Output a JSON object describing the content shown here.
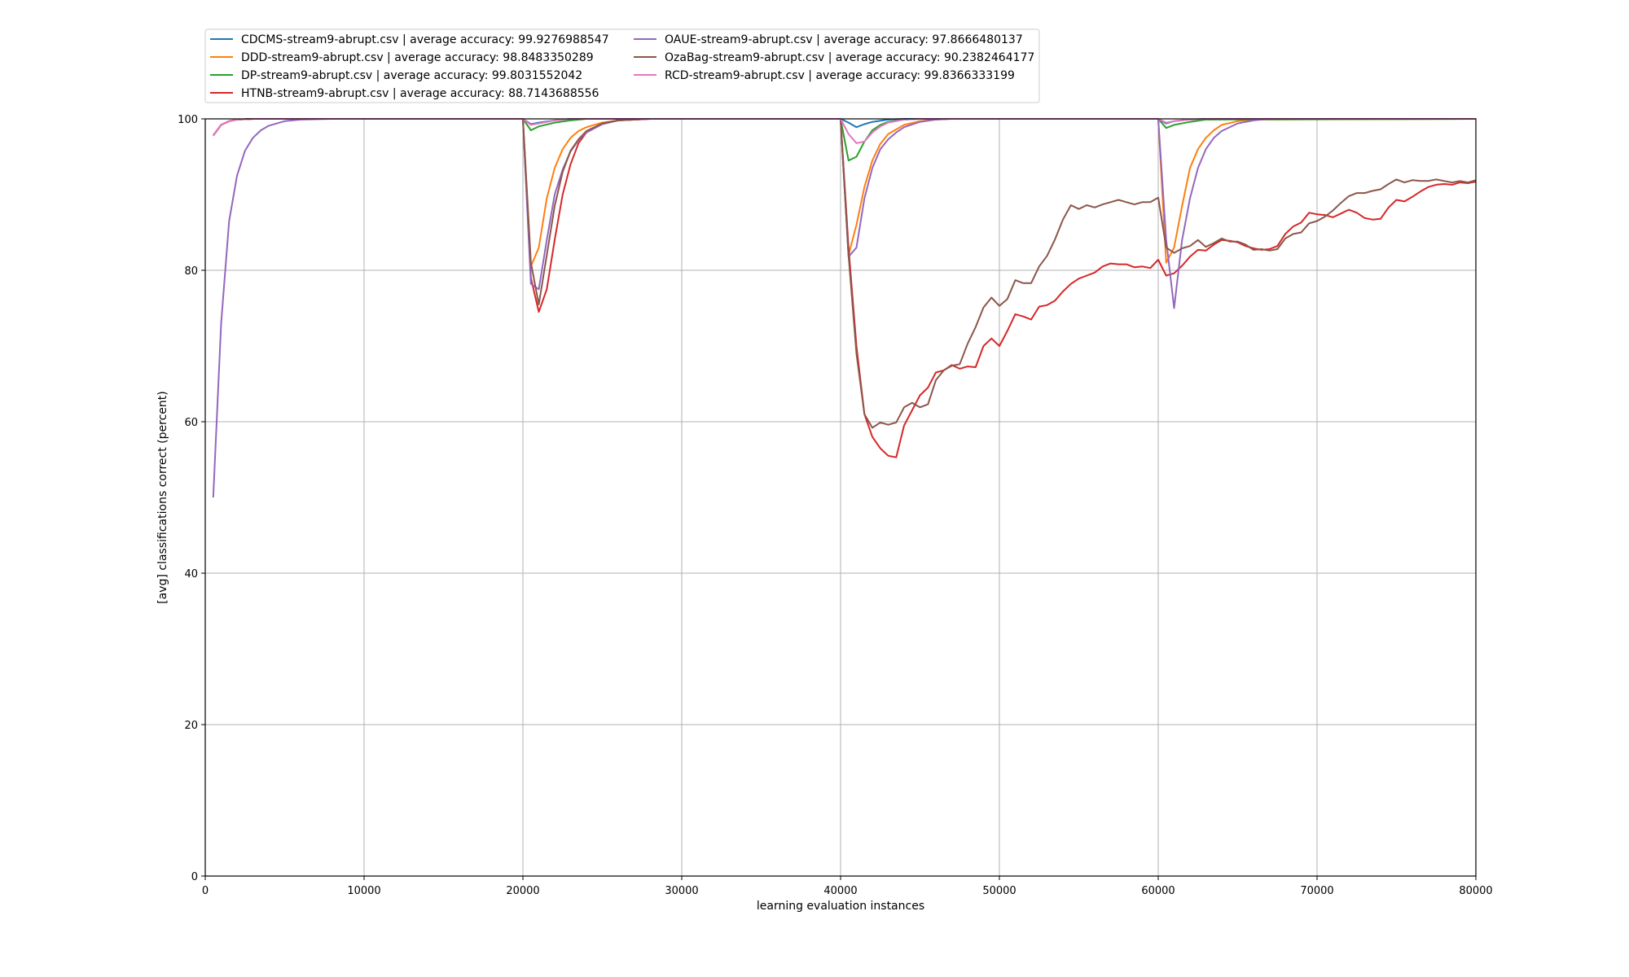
{
  "chart_data": {
    "type": "line",
    "title": "",
    "xlabel": "learning evaluation instances",
    "ylabel": "[avg] classifications correct (percent)",
    "xlim": [
      0,
      80000
    ],
    "ylim": [
      0,
      100
    ],
    "xticks": [
      0,
      10000,
      20000,
      30000,
      40000,
      50000,
      60000,
      70000,
      80000
    ],
    "yticks": [
      0,
      20,
      40,
      60,
      80,
      100
    ],
    "grid": true,
    "legend_position": "top-left, above plot, two columns",
    "series": [
      {
        "name": "CDCMS-stream9-abrupt.csv | average accuracy: 99.9276988547",
        "color": "#1f77b4",
        "x": [
          500,
          1000,
          1500,
          2000,
          3000,
          20000,
          20500,
          21000,
          22000,
          23000,
          24000,
          40000,
          40500,
          41000,
          41500,
          42000,
          43000,
          44000,
          60000,
          60500,
          61000,
          62000,
          63000,
          80000
        ],
        "y": [
          97.8,
          99.2,
          99.7,
          99.9,
          100,
          100,
          99.3,
          99.5,
          99.8,
          100,
          100,
          100,
          99.5,
          98.9,
          99.3,
          99.6,
          99.9,
          100,
          100,
          99.4,
          99.7,
          99.9,
          100,
          100
        ]
      },
      {
        "name": "DDD-stream9-abrupt.csv | average accuracy: 98.8483350289",
        "color": "#ff7f0e",
        "x": [
          500,
          1000,
          1500,
          2000,
          3000,
          20000,
          20500,
          21000,
          21500,
          22000,
          22500,
          23000,
          23500,
          24000,
          25000,
          26000,
          28000,
          40000,
          40500,
          41000,
          41500,
          42000,
          42500,
          43000,
          44000,
          45000,
          46000,
          47000,
          60000,
          60500,
          61000,
          61500,
          62000,
          62500,
          63000,
          63500,
          64000,
          65000,
          66000,
          80000
        ],
        "y": [
          97.8,
          99.2,
          99.7,
          99.9,
          100,
          100,
          80.5,
          83,
          89.5,
          93.5,
          96,
          97.5,
          98.4,
          98.9,
          99.5,
          99.8,
          100,
          100,
          82,
          86,
          91,
          94.5,
          96.7,
          98,
          99.2,
          99.7,
          99.9,
          100,
          100,
          81,
          83,
          88.5,
          93.5,
          96,
          97.5,
          98.5,
          99.2,
          99.7,
          99.9,
          100
        ]
      },
      {
        "name": "DP-stream9-abrupt.csv | average accuracy: 99.8031552042",
        "color": "#2ca02c",
        "x": [
          500,
          1000,
          1500,
          2000,
          3000,
          20000,
          20500,
          21000,
          22000,
          23000,
          24000,
          40000,
          40500,
          41000,
          41500,
          42000,
          42500,
          43000,
          44000,
          45000,
          60000,
          60500,
          61000,
          62000,
          63000,
          80000
        ],
        "y": [
          97.8,
          99.2,
          99.7,
          99.9,
          100,
          100,
          98.5,
          99,
          99.5,
          99.8,
          100,
          100,
          94.5,
          95,
          97,
          98.5,
          99.2,
          99.6,
          99.9,
          100,
          100,
          98.8,
          99.2,
          99.6,
          99.9,
          100
        ]
      },
      {
        "name": "HTNB-stream9-abrupt.csv | average accuracy: 88.7143688556",
        "color": "#d62728",
        "x": [
          500,
          1000,
          1500,
          2000,
          3000,
          20000,
          20500,
          21000,
          21500,
          22000,
          22500,
          23000,
          23500,
          24000,
          25000,
          26000,
          28000,
          40000,
          40500,
          41000,
          41500,
          42000,
          42500,
          43000,
          43500,
          44000,
          44500,
          45000,
          45500,
          46000,
          46500,
          47000,
          47500,
          48000,
          48500,
          49000,
          49500,
          50000,
          50500,
          51000,
          51500,
          52000,
          52500,
          53000,
          53500,
          54000,
          54500,
          55000,
          55500,
          56000,
          56500,
          57000,
          57500,
          58000,
          58500,
          59000,
          59500,
          60000,
          60500,
          61000,
          61500,
          62000,
          62500,
          63000,
          63500,
          64000,
          64500,
          65000,
          65500,
          66000,
          66500,
          67000,
          67500,
          68000,
          68500,
          69000,
          69500,
          70000,
          70500,
          71000,
          71500,
          72000,
          72500,
          73000,
          73500,
          74000,
          74500,
          75000,
          75500,
          76000,
          76500,
          77000,
          77500,
          78000,
          78500,
          79000,
          79500,
          80000
        ],
        "y": [
          97.8,
          99.2,
          99.7,
          99.9,
          100,
          100,
          79,
          74.5,
          77.5,
          84,
          90,
          94,
          96.8,
          98.2,
          99.4,
          99.8,
          100,
          100,
          83,
          70,
          61,
          58,
          56.5,
          55.5,
          55.3,
          59.5,
          61.5,
          63.5,
          64.5,
          66.5,
          66.8,
          67.5,
          67,
          67.3,
          67.2,
          70,
          71,
          70,
          72,
          74.2,
          73.9,
          73.5,
          75.2,
          75.4,
          76,
          77.2,
          78.2,
          78.9,
          79.3,
          79.7,
          80.5,
          80.9,
          80.8,
          80.8,
          80.4,
          80.5,
          80.3,
          81.4,
          79.3,
          79.6,
          80.6,
          81.8,
          82.7,
          82.6,
          83.4,
          84,
          83.9,
          83.7,
          83.2,
          82.9,
          82.7,
          82.8,
          83.2,
          84.8,
          85.8,
          86.3,
          87.6,
          87.4,
          87.3,
          87,
          87.5,
          88,
          87.6,
          86.9,
          86.7,
          86.8,
          88.3,
          89.3,
          89.1,
          89.7,
          90.4,
          91,
          91.3,
          91.4,
          91.3,
          91.6,
          91.5,
          91.7
        ]
      },
      {
        "name": "OAUE-stream9-abrupt.csv | average accuracy: 97.8666480137",
        "color": "#9467bd",
        "x": [
          500,
          1000,
          1500,
          2000,
          2500,
          3000,
          3500,
          4000,
          5000,
          6000,
          8000,
          20000,
          20500,
          21000,
          21500,
          22000,
          22500,
          23000,
          23500,
          24000,
          25000,
          26000,
          28000,
          40000,
          40500,
          41000,
          41500,
          42000,
          42500,
          43000,
          43500,
          44000,
          45000,
          46000,
          47000,
          60000,
          60500,
          61000,
          61500,
          62000,
          62500,
          63000,
          63500,
          64000,
          65000,
          66000,
          67000,
          80000
        ],
        "y": [
          50,
          73,
          86.5,
          92.5,
          95.8,
          97.5,
          98.5,
          99.1,
          99.7,
          99.9,
          100,
          100,
          78.2,
          77.5,
          84,
          90,
          93.3,
          95.7,
          97.2,
          98.2,
          99.3,
          99.8,
          100,
          100,
          81.8,
          83,
          89.5,
          93.5,
          96,
          97.3,
          98.2,
          98.9,
          99.6,
          99.9,
          100,
          100,
          84,
          75,
          84,
          89.5,
          93.5,
          96,
          97.5,
          98.4,
          99.4,
          99.8,
          100,
          100
        ]
      },
      {
        "name": "OzaBag-stream9-abrupt.csv | average accuracy: 90.2382464177",
        "color": "#8c564b",
        "x": [
          500,
          1000,
          1500,
          2000,
          3000,
          20000,
          20500,
          21000,
          21500,
          22000,
          22500,
          23000,
          23500,
          24000,
          25000,
          26000,
          28000,
          40000,
          40500,
          41000,
          41500,
          42000,
          42500,
          43000,
          43500,
          44000,
          44500,
          45000,
          45500,
          46000,
          46500,
          47000,
          47500,
          48000,
          48500,
          49000,
          49500,
          50000,
          50500,
          51000,
          51500,
          52000,
          52500,
          53000,
          53500,
          54000,
          54500,
          55000,
          55500,
          56000,
          56500,
          57000,
          57500,
          58000,
          58500,
          59000,
          59500,
          60000,
          60500,
          61000,
          61500,
          62000,
          62500,
          63000,
          63500,
          64000,
          64500,
          65000,
          65500,
          66000,
          66500,
          67000,
          67500,
          68000,
          68500,
          69000,
          69500,
          70000,
          70500,
          71000,
          71500,
          72000,
          72500,
          73000,
          73500,
          74000,
          74500,
          75000,
          75500,
          76000,
          76500,
          77000,
          77500,
          78000,
          78500,
          79000,
          79500,
          80000
        ],
        "y": [
          97.8,
          99.2,
          99.7,
          99.9,
          100,
          100,
          81,
          75.5,
          82,
          88.5,
          93,
          95.8,
          97.3,
          98.4,
          99.4,
          99.8,
          100,
          100,
          82,
          69,
          61,
          59.2,
          59.9,
          59.6,
          59.9,
          61.9,
          62.5,
          61.9,
          62.3,
          65.5,
          66.8,
          67.4,
          67.6,
          70.3,
          72.5,
          75.1,
          76.4,
          75.3,
          76.2,
          78.7,
          78.3,
          78.3,
          80.5,
          81.9,
          84.1,
          86.7,
          88.6,
          88.1,
          88.6,
          88.3,
          88.7,
          89,
          89.3,
          89,
          88.7,
          89,
          89,
          89.6,
          83,
          82.3,
          82.9,
          83.2,
          84,
          83.1,
          83.6,
          84.2,
          83.8,
          83.8,
          83.4,
          82.7,
          82.8,
          82.6,
          82.8,
          84.2,
          84.8,
          85,
          86.2,
          86.5,
          87.1,
          87.9,
          88.9,
          89.8,
          90.2,
          90.2,
          90.5,
          90.7,
          91.4,
          92,
          91.6,
          91.9,
          91.8,
          91.8,
          92,
          91.8,
          91.6,
          91.8,
          91.6,
          91.9
        ]
      },
      {
        "name": "RCD-stream9-abrupt.csv | average accuracy: 99.8366333199",
        "color": "#e377c2",
        "x": [
          500,
          1000,
          1500,
          2000,
          3000,
          20000,
          20500,
          21000,
          22000,
          23000,
          24000,
          40000,
          40500,
          41000,
          41500,
          42000,
          42500,
          43000,
          44000,
          45000,
          60000,
          60500,
          61000,
          62000,
          63000,
          80000
        ],
        "y": [
          97.8,
          99.2,
          99.7,
          99.9,
          100,
          100,
          99.2,
          99.4,
          99.8,
          100,
          100,
          100,
          98,
          96.8,
          97,
          98.2,
          99,
          99.5,
          99.9,
          100,
          100,
          99.5,
          99.7,
          99.9,
          100,
          100
        ]
      }
    ]
  }
}
